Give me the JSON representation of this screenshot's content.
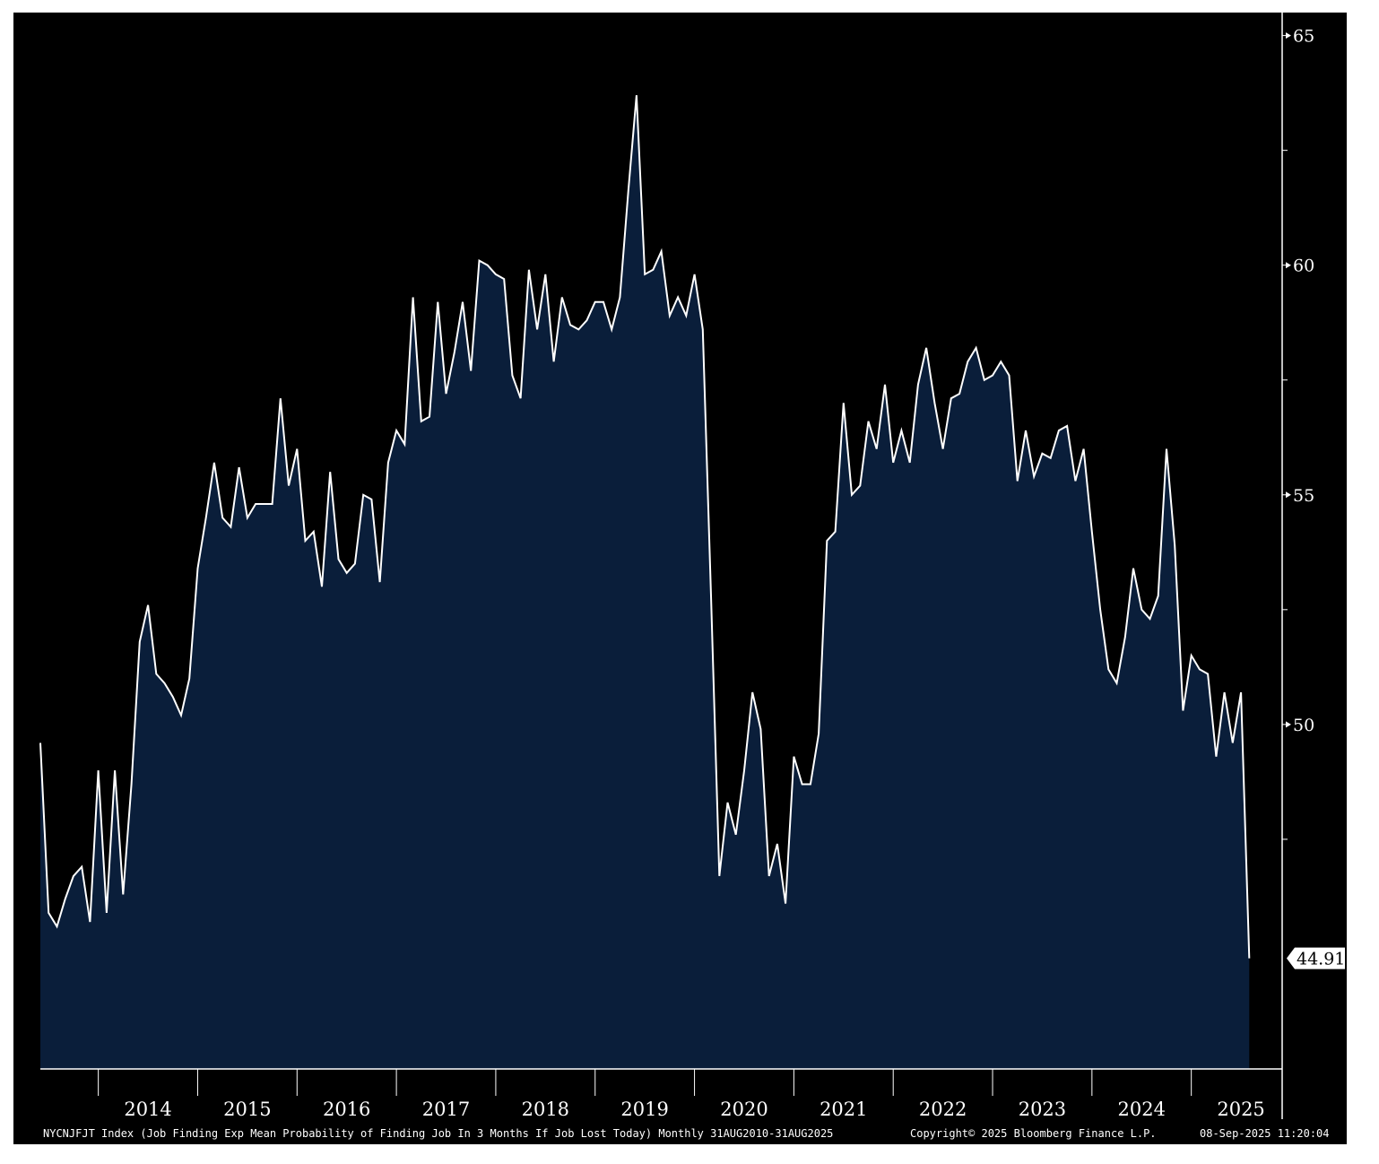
{
  "chart_data": {
    "type": "area",
    "title": "",
    "xlabel": "",
    "ylabel": "",
    "x_range": [
      "2013-06",
      "2025-08"
    ],
    "ylim": [
      42.5,
      65.5
    ],
    "y_ticks": [
      50,
      55,
      60,
      65
    ],
    "y_tick_labels": [
      "50",
      "55",
      "60",
      "65"
    ],
    "x_tick_labels": [
      "2014",
      "2015",
      "2016",
      "2017",
      "2018",
      "2019",
      "2020",
      "2021",
      "2022",
      "2023",
      "2024",
      "2025"
    ],
    "grid": false,
    "colors": {
      "background": "#000000",
      "area_fill": "#0a1e3a",
      "line": "#ffffff"
    },
    "last_value_label": "44.91",
    "series": [
      {
        "values": [
          49.6,
          45.9,
          45.6,
          46.2,
          46.7,
          46.9,
          45.7,
          49.0,
          45.9,
          49.0,
          46.3,
          48.7,
          51.8,
          52.6,
          51.1,
          50.9,
          50.6,
          50.2,
          51.0,
          53.4,
          54.5,
          55.7,
          54.5,
          54.3,
          55.6,
          54.5,
          54.8,
          54.8,
          54.8,
          57.1,
          55.2,
          56.0,
          54.0,
          54.2,
          53.0,
          55.5,
          53.6,
          53.3,
          53.5,
          55.0,
          54.9,
          53.1,
          55.7,
          56.4,
          56.1,
          59.3,
          56.6,
          56.7,
          59.2,
          57.2,
          58.1,
          59.2,
          57.7,
          60.1,
          60.0,
          59.8,
          59.7,
          57.6,
          57.1,
          59.9,
          58.6,
          59.8,
          57.9,
          59.3,
          58.7,
          58.6,
          58.8,
          59.2,
          59.2,
          58.6,
          59.3,
          61.6,
          63.7,
          59.8,
          59.9,
          60.3,
          58.9,
          59.3,
          58.9,
          59.8,
          58.6,
          52.8,
          46.7,
          48.3,
          47.6,
          49.0,
          50.7,
          49.9,
          46.7,
          47.4,
          46.1,
          49.3,
          48.7,
          48.7,
          49.8,
          54.0,
          54.2,
          57.0,
          55.0,
          55.2,
          56.6,
          56.0,
          57.4,
          55.7,
          56.4,
          55.7,
          57.4,
          58.2,
          57.0,
          56.0,
          57.1,
          57.2,
          57.9,
          58.2,
          57.5,
          57.6,
          57.9,
          57.6,
          55.3,
          56.4,
          55.4,
          55.9,
          55.8,
          56.4,
          56.5,
          55.3,
          56.0,
          54.2,
          52.5,
          51.2,
          50.9,
          51.9,
          53.4,
          52.5,
          52.3,
          52.8,
          56.0,
          53.9,
          50.3,
          51.5,
          51.2,
          51.1,
          49.3,
          50.7,
          49.6,
          50.7,
          44.91
        ]
      }
    ]
  },
  "footer": {
    "description": "NYCNJFJT Index (Job Finding Exp Mean Probability of Finding Job In 3 Months If Job Lost Today) Monthly 31AUG2010-31AUG2025",
    "copyright": "Copyright© 2025 Bloomberg Finance L.P.",
    "timestamp": "08-Sep-2025 11:20:04"
  }
}
